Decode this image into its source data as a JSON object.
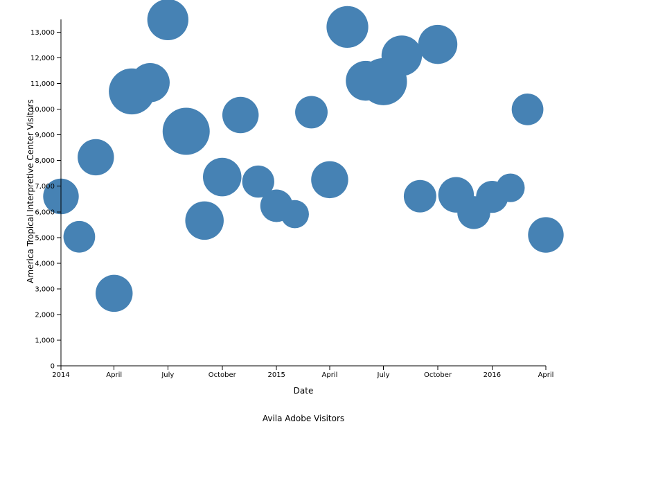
{
  "chart_data": {
    "type": "scatter",
    "xlabel": "Date",
    "ylabel": "America Tropical Interpretive Center Visitors",
    "size_label": "Avila Adobe Visitors",
    "color": "#4682b4",
    "x_range": [
      "2014-01-01",
      "2016-04-01"
    ],
    "ylim": [
      0,
      13500
    ],
    "x_ticks": [
      {
        "date": "2014-01-01",
        "label": "2014"
      },
      {
        "date": "2014-04-01",
        "label": "April"
      },
      {
        "date": "2014-07-01",
        "label": "July"
      },
      {
        "date": "2014-10-01",
        "label": "October"
      },
      {
        "date": "2015-01-01",
        "label": "2015"
      },
      {
        "date": "2015-04-01",
        "label": "April"
      },
      {
        "date": "2015-07-01",
        "label": "July"
      },
      {
        "date": "2015-10-01",
        "label": "October"
      },
      {
        "date": "2016-01-01",
        "label": "2016"
      },
      {
        "date": "2016-04-01",
        "label": "April"
      }
    ],
    "y_ticks": [
      {
        "value": 0,
        "label": "0"
      },
      {
        "value": 1000,
        "label": "1,000"
      },
      {
        "value": 2000,
        "label": "2,000"
      },
      {
        "value": 3000,
        "label": "3,000"
      },
      {
        "value": 4000,
        "label": "4,000"
      },
      {
        "value": 5000,
        "label": "5,000"
      },
      {
        "value": 6000,
        "label": "6,000"
      },
      {
        "value": 7000,
        "label": "7,000"
      },
      {
        "value": 8000,
        "label": "8,000"
      },
      {
        "value": 9000,
        "label": "9,000"
      },
      {
        "value": 10000,
        "label": "10,000"
      },
      {
        "value": 11000,
        "label": "11,000"
      },
      {
        "value": 12000,
        "label": "12,000"
      },
      {
        "value": 13000,
        "label": "13,000"
      }
    ],
    "points": [
      {
        "date": "2014-01-01",
        "y": 6602,
        "size": 24000
      },
      {
        "date": "2014-02-01",
        "y": 5029,
        "size": 19000
      },
      {
        "date": "2014-03-01",
        "y": 8129,
        "size": 25000
      },
      {
        "date": "2014-04-01",
        "y": 2824,
        "size": 26000
      },
      {
        "date": "2014-05-01",
        "y": 10694,
        "size": 40000
      },
      {
        "date": "2014-06-01",
        "y": 11036,
        "size": 29000
      },
      {
        "date": "2014-07-01",
        "y": 13490,
        "size": 32000
      },
      {
        "date": "2014-08-01",
        "y": 9139,
        "size": 42000
      },
      {
        "date": "2014-09-01",
        "y": 5661,
        "size": 28000
      },
      {
        "date": "2014-10-01",
        "y": 7356,
        "size": 28000
      },
      {
        "date": "2014-11-01",
        "y": 9773,
        "size": 25000
      },
      {
        "date": "2014-12-01",
        "y": 7181,
        "size": 19500
      },
      {
        "date": "2015-01-01",
        "y": 6237,
        "size": 20000
      },
      {
        "date": "2015-02-01",
        "y": 5910,
        "size": 15000
      },
      {
        "date": "2015-03-01",
        "y": 9884,
        "size": 20000
      },
      {
        "date": "2015-04-01",
        "y": 7254,
        "size": 26000
      },
      {
        "date": "2015-05-01",
        "y": 13207,
        "size": 33000
      },
      {
        "date": "2015-06-01",
        "y": 11107,
        "size": 30000
      },
      {
        "date": "2015-07-01",
        "y": 11075,
        "size": 42000
      },
      {
        "date": "2015-08-01",
        "y": 12085,
        "size": 31000
      },
      {
        "date": "2015-09-01",
        "y": 6609,
        "size": 20000
      },
      {
        "date": "2015-10-01",
        "y": 12526,
        "size": 29000
      },
      {
        "date": "2015-11-01",
        "y": 6664,
        "size": 24000
      },
      {
        "date": "2015-12-01",
        "y": 5972,
        "size": 20500
      },
      {
        "date": "2016-01-01",
        "y": 6585,
        "size": 19500
      },
      {
        "date": "2016-02-01",
        "y": 6936,
        "size": 15500
      },
      {
        "date": "2016-03-01",
        "y": 9992,
        "size": 19000
      },
      {
        "date": "2016-04-01",
        "y": 5102,
        "size": 24000
      }
    ]
  }
}
